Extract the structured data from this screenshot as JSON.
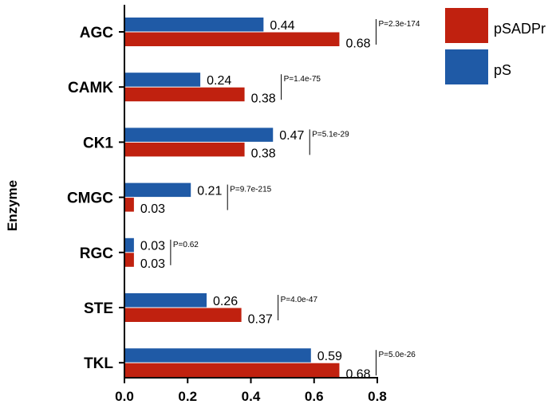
{
  "chart_data": {
    "type": "bar",
    "orientation": "horizontal",
    "title": "",
    "xlabel": "",
    "ylabel": "Enzyme",
    "xlim": [
      0,
      0.8
    ],
    "xticks": [
      0.0,
      0.2,
      0.4,
      0.6,
      0.8
    ],
    "xtick_labels": [
      "0.0",
      "0.2",
      "0.4",
      "0.6",
      "0.8"
    ],
    "categories": [
      "AGC",
      "CAMK",
      "CK1",
      "CMGC",
      "RGC",
      "STE",
      "TKL"
    ],
    "series": [
      {
        "name": "pS",
        "color": "#1f5aa6",
        "values": [
          0.44,
          0.24,
          0.47,
          0.21,
          0.03,
          0.26,
          0.59
        ],
        "labels": [
          "0.44",
          "0.24",
          "0.47",
          "0.21",
          "0.03",
          "0.26",
          "0.59"
        ]
      },
      {
        "name": "pSADPr",
        "color": "#c0210f",
        "values": [
          0.68,
          0.38,
          0.38,
          0.03,
          0.03,
          0.37,
          0.68
        ],
        "labels": [
          "0.68",
          "0.38",
          "0.38",
          "0.03",
          "0.03",
          "0.37",
          "0.68"
        ]
      }
    ],
    "p_values": [
      "P=2.3e-174",
      "P=1.4e-75",
      "P=5.1e-29",
      "P=9.7e-215",
      "P=0.62",
      "P=4.0e-47",
      "P=5.0e-26"
    ],
    "legend": {
      "placement": "top-right",
      "entries": [
        {
          "name": "pSADPr",
          "color": "#c0210f"
        },
        {
          "name": "pS",
          "color": "#1f5aa6"
        }
      ]
    },
    "grid": false
  }
}
